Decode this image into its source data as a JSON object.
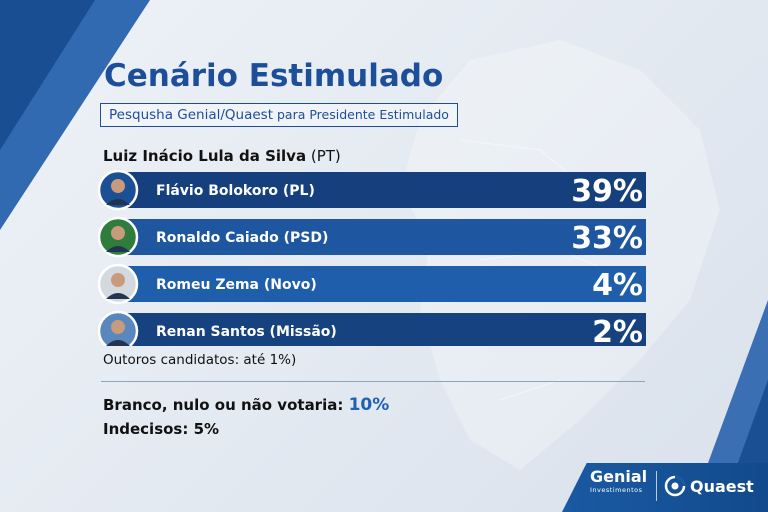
{
  "header": {
    "title": "Cenário Estimulado",
    "subtitle_bold": "Pesqusha Genial/Quaest",
    "subtitle_rest": "para Presidente Estimulado"
  },
  "lead_candidate": {
    "name": "Luiz Inácio Lula da Silva",
    "party": "(PT)"
  },
  "chart_data": {
    "type": "bar",
    "orientation": "horizontal",
    "categories": [
      "Flávio Bolokoro (PL)",
      "Ronaldo Caiado (PSD)",
      "Romeu Zema (Novo)",
      "Renan Santos (Missão)"
    ],
    "values": [
      39,
      33,
      4,
      2
    ],
    "value_labels": [
      "39%",
      "33%",
      "4%",
      "2%"
    ],
    "unit": "%",
    "bar_colors": [
      "#153f7d",
      "#1e56a0",
      "#1f5eaa",
      "#16427f"
    ],
    "avatar_backgrounds": [
      "#1b4f96",
      "#2f7d3c",
      "#d4d9df",
      "#5a87bd"
    ]
  },
  "notes": {
    "others": "Outoros candidatos: até 1%)",
    "blank_label": "Branco, nulo ou não votaria:",
    "blank_value": "10%",
    "undecided": "Indecisos: 5%"
  },
  "footer": {
    "genial": "Genial",
    "genial_sub": "Investimentos",
    "quaest": "Quaest"
  },
  "colors": {
    "title": "#1d4e9a",
    "accent": "#1d62b3",
    "footer": "#1a5aa3"
  }
}
